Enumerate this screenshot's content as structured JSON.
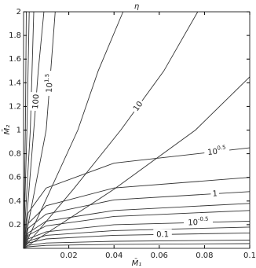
{
  "chart_data": {
    "type": "contour",
    "title": "η",
    "xlabel": "M̄₁",
    "ylabel": "M̄₂",
    "xlim": [
      0,
      0.1
    ],
    "ylim": [
      0,
      2
    ],
    "xticks": [
      0.02,
      0.04,
      0.06,
      0.08,
      0.1
    ],
    "yticks": [
      0.2,
      0.4,
      0.6,
      0.8,
      1,
      1.2,
      1.4,
      1.6,
      1.8,
      2
    ],
    "color": "#333333",
    "series": [
      {
        "x": [
          0,
          0.0008,
          0.0012
        ],
        "y": [
          0,
          1,
          2
        ]
      },
      {
        "x": [
          0,
          0.0015,
          0.0025
        ],
        "y": [
          0,
          1,
          2
        ]
      },
      {
        "x": [
          0,
          0.003,
          0.0045
        ],
        "y": [
          0,
          1,
          2
        ]
      },
      {
        "label": "100",
        "x": [
          0,
          0.002,
          0.0045,
          0.0065,
          0.009
        ],
        "y": [
          0,
          0.4,
          1,
          1.5,
          2
        ]
      },
      {
        "label": "10",
        "label_exp": "1.5",
        "x": [
          0,
          0.005,
          0.01,
          0.012,
          0.014
        ],
        "y": [
          0,
          0.5,
          1,
          1.5,
          2
        ]
      },
      {
        "x": [
          0,
          0.012,
          0.024,
          0.033,
          0.044
        ],
        "y": [
          0,
          0.5,
          1,
          1.5,
          2
        ]
      },
      {
        "label": "10",
        "x": [
          0,
          0.022,
          0.043,
          0.062,
          0.077
        ],
        "y": [
          0,
          0.5,
          1,
          1.5,
          2
        ]
      },
      {
        "x": [
          0,
          0.04,
          0.076,
          0.1
        ],
        "y": [
          0,
          0.5,
          1,
          1.45
        ]
      },
      {
        "label": "10",
        "label_exp": "0.5",
        "x": [
          0,
          0.002,
          0.01,
          0.04,
          0.1
        ],
        "y": [
          0,
          0.3,
          0.51,
          0.72,
          0.85
        ]
      },
      {
        "x": [
          0,
          0.002,
          0.01,
          0.04,
          0.1
        ],
        "y": [
          0,
          0.21,
          0.36,
          0.51,
          0.6
        ]
      },
      {
        "label": "1",
        "x": [
          0,
          0.002,
          0.01,
          0.04,
          0.1
        ],
        "y": [
          0,
          0.17,
          0.29,
          0.41,
          0.48
        ]
      },
      {
        "x": [
          0,
          0.002,
          0.01,
          0.04,
          0.1
        ],
        "y": [
          0,
          0.13,
          0.23,
          0.32,
          0.38
        ]
      },
      {
        "x": [
          0,
          0.002,
          0.01,
          0.04,
          0.1
        ],
        "y": [
          0,
          0.11,
          0.19,
          0.27,
          0.32
        ]
      },
      {
        "label": "10",
        "label_exp": "-0.5",
        "x": [
          0,
          0.002,
          0.01,
          0.04,
          0.1
        ],
        "y": [
          0,
          0.08,
          0.14,
          0.2,
          0.23
        ]
      },
      {
        "x": [
          0,
          0.002,
          0.01,
          0.04,
          0.1
        ],
        "y": [
          0,
          0.06,
          0.11,
          0.15,
          0.18
        ]
      },
      {
        "label": "0.1",
        "x": [
          0,
          0.002,
          0.01,
          0.04,
          0.1
        ],
        "y": [
          0,
          0.045,
          0.08,
          0.11,
          0.13
        ]
      },
      {
        "x": [
          0,
          0.002,
          0.01,
          0.04,
          0.1
        ],
        "y": [
          0,
          0.025,
          0.045,
          0.06,
          0.07
        ]
      },
      {
        "x": [
          0,
          0.002,
          0.01,
          0.04,
          0.1
        ],
        "y": [
          0,
          0.013,
          0.025,
          0.034,
          0.04
        ]
      }
    ]
  }
}
